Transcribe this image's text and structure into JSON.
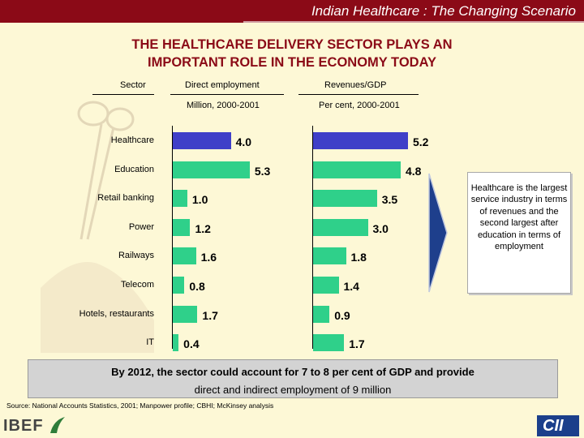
{
  "header": {
    "title": "Indian Healthcare : The Changing Scenario"
  },
  "headline": {
    "line1": "THE HEALTHCARE DELIVERY SECTOR PLAYS AN",
    "line2": "IMPORTANT ROLE IN THE ECONOMY TODAY"
  },
  "columns": {
    "sector": "Sector",
    "employment": "Direct employment",
    "employment_unit": "Million, 2000-2001",
    "revenue": "Revenues/GDP",
    "revenue_unit": "Per cent, 2000-2001"
  },
  "chart_data": {
    "type": "bar",
    "orientation": "horizontal",
    "categories": [
      "Healthcare",
      "Education",
      "Retail banking",
      "Power",
      "Railways",
      "Telecom",
      "Hotels, restaurants",
      "IT"
    ],
    "series": [
      {
        "name": "Direct employment",
        "values": [
          4.0,
          5.3,
          1.0,
          1.2,
          1.6,
          0.8,
          1.7,
          0.4
        ],
        "labels": [
          "4.0",
          "5.3",
          "1.0",
          "1.2",
          "1.6",
          "0.8",
          "1.7",
          "0.4"
        ]
      },
      {
        "name": "Revenues/GDP",
        "values": [
          5.2,
          4.8,
          3.5,
          3.0,
          1.8,
          1.4,
          0.9,
          1.7
        ],
        "labels": [
          "5.2",
          "4.8",
          "3.5",
          "3.0",
          "1.8",
          "1.4",
          "0.9",
          "1.7"
        ]
      }
    ],
    "highlight_category": "Healthcare",
    "colors": {
      "highlight": "#3f3fc8",
      "default": "#2fd08a"
    }
  },
  "note": {
    "text": "Healthcare is the largest service industry in terms of revenues and the second largest after education in terms of employment"
  },
  "footer": {
    "line1": "By 2012, the sector could account for 7 to 8 per cent of GDP and provide",
    "line2": "direct and indirect employment of 9 million"
  },
  "source": "Source: National Accounts Statistics, 2001; Manpower profile; CBHI; McKinsey analysis",
  "logos": {
    "left": "IBEF",
    "right": "CII"
  },
  "colors": {
    "brand_red": "#8b0a17",
    "background": "#fdf8d6",
    "footer_box": "#d3d3d3",
    "arrow": "#1e3f8c"
  }
}
